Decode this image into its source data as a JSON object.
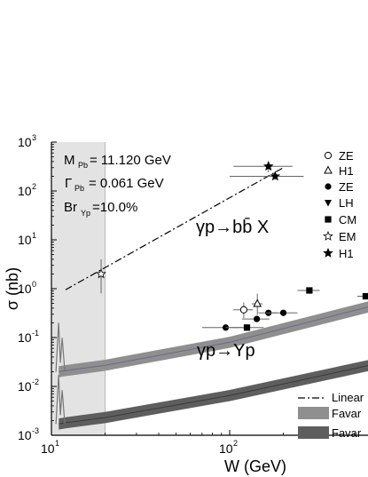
{
  "chart_data": {
    "type": "scatter",
    "xlabel": "W (GeV)",
    "ylabel": "σ (nb)",
    "x_scale": "log",
    "y_scale": "log",
    "xlim": [
      10,
      200000
    ],
    "ylim": [
      0.001,
      1000
    ],
    "x_ticks": [
      {
        "value": 10,
        "base": "10",
        "exp": "1"
      },
      {
        "value": 100,
        "base": "10",
        "exp": "2"
      }
    ],
    "y_ticks": [
      {
        "value": 0.001,
        "base": "10",
        "exp": "-3"
      },
      {
        "value": 0.01,
        "base": "10",
        "exp": "-2"
      },
      {
        "value": 0.1,
        "base": "10",
        "exp": "-1"
      },
      {
        "value": 1,
        "base": "10",
        "exp": "0"
      },
      {
        "value": 10,
        "base": "10",
        "exp": "1"
      },
      {
        "value": 100,
        "base": "10",
        "exp": "2"
      },
      {
        "value": 1000,
        "base": "10",
        "exp": "3"
      }
    ],
    "shaded_region_x": [
      10,
      20
    ],
    "info_box": {
      "line1_main": "M",
      "line1_sub": "Pb",
      "line1_val": "= 11.120  GeV",
      "line2_main": "Γ",
      "line2_sub": "Pb",
      "line2_val": "= 0.061 GeV",
      "line3_main": "Br",
      "line3_sub": "Υp",
      "line3_val": "=10.0%"
    },
    "annotations": [
      {
        "text": "γp→bb̄ X"
      },
      {
        "text": "γp→Υp"
      }
    ],
    "legend": [
      {
        "marker": "open-circle",
        "label": "ZE"
      },
      {
        "marker": "open-triangle",
        "label": "H1"
      },
      {
        "marker": "filled-circle",
        "label": "ZE"
      },
      {
        "marker": "filled-triangle-down",
        "label": "LH"
      },
      {
        "marker": "filled-square",
        "label": "CM"
      },
      {
        "marker": "open-star",
        "label": "EM"
      },
      {
        "marker": "filled-star",
        "label": "H1"
      },
      {
        "marker": "dash-dot-line",
        "label": "Linear"
      },
      {
        "marker": "light-band",
        "label": "Favar"
      },
      {
        "marker": "dark-band",
        "label": "Favar"
      }
    ],
    "series": [
      {
        "marker": "open-circle",
        "points": [
          {
            "x": 120,
            "y": 0.37,
            "xerr": 15,
            "yerr_up": 0.15,
            "yerr_dn": 0.12
          }
        ]
      },
      {
        "marker": "open-triangle",
        "points": [
          {
            "x": 143,
            "y": 0.49,
            "xerr": 10,
            "yerr_up": 0.3,
            "yerr_dn": 0.2
          }
        ]
      },
      {
        "marker": "filled-circle",
        "points": [
          {
            "x": 95,
            "y": 0.16,
            "xerr": 25
          },
          {
            "x": 142,
            "y": 0.24,
            "xerr": 25
          },
          {
            "x": 165,
            "y": 0.32,
            "xerr": 20
          },
          {
            "x": 200,
            "y": 0.32,
            "xerr": 40
          }
        ]
      },
      {
        "marker": "filled-square",
        "points": [
          {
            "x": 125,
            "y": 0.16,
            "xerr": 30
          },
          {
            "x": 280,
            "y": 0.92,
            "xerr": 40
          },
          {
            "x": 580,
            "y": 0.7,
            "xerr": 60
          }
        ]
      },
      {
        "marker": "open-star",
        "points": [
          {
            "x": 19,
            "y": 2.0,
            "yerr_up": 2.0,
            "yerr_dn": 1.2
          }
        ]
      },
      {
        "marker": "filled-star",
        "points": [
          {
            "x": 165,
            "y": 320,
            "xerr": 60,
            "yerr_up": 80,
            "yerr_dn": 80
          },
          {
            "x": 180,
            "y": 200,
            "xerr": 80,
            "yerr_up": 30,
            "yerr_dn": 30
          }
        ]
      }
    ],
    "lines": [
      {
        "style": "dash-dot",
        "points": [
          [
            12,
            0.95
          ],
          [
            200,
            300
          ]
        ]
      }
    ],
    "bands": [
      {
        "shade": "light",
        "points": [
          [
            11,
            0.02
          ],
          [
            12,
            0.021
          ],
          [
            20,
            0.027
          ],
          [
            100,
            0.08
          ],
          [
            1000,
            0.68
          ],
          [
            3000,
            1.35
          ]
        ],
        "rel_width": 0.3
      },
      {
        "shade": "dark",
        "points": [
          [
            11,
            0.0017
          ],
          [
            12,
            0.0018
          ],
          [
            20,
            0.0023
          ],
          [
            100,
            0.0065
          ],
          [
            1000,
            0.04
          ],
          [
            3000,
            0.09
          ]
        ],
        "rel_width": 0.3
      }
    ],
    "colors": {
      "shade_region": "#e3e3e3",
      "band_light": "#8f8f8f",
      "band_dark": "#5e5e5e",
      "center_light": "#6a6a88",
      "center_dark": "#3a3a3a"
    }
  }
}
